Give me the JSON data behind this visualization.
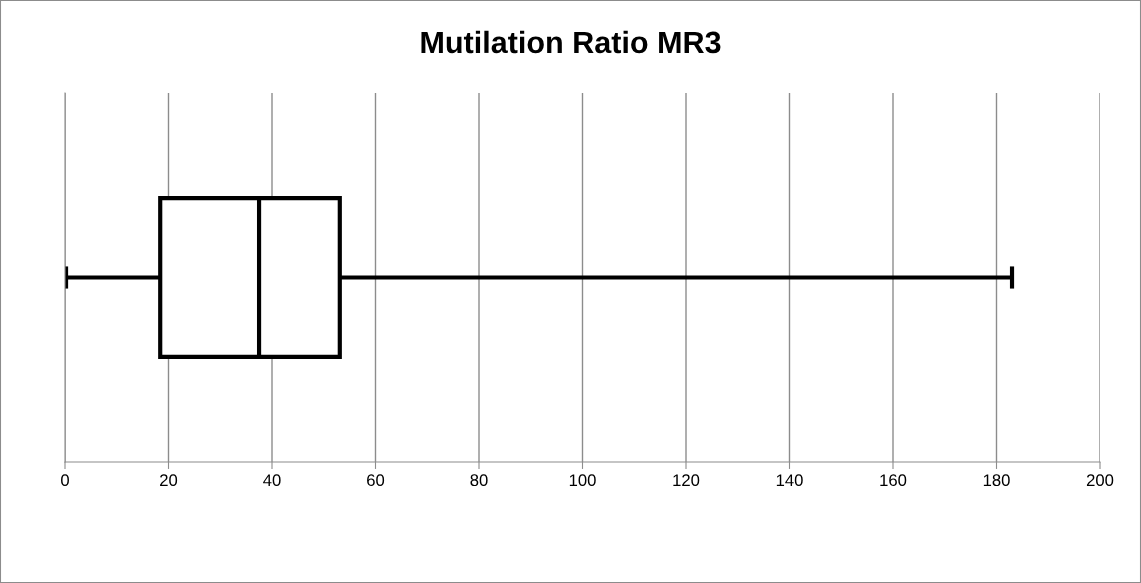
{
  "chart_data": {
    "type": "box",
    "title": "Mutilation Ratio MR3",
    "orientation": "horizontal",
    "categories": [
      null
    ],
    "boxes": [
      {
        "low": 0.2,
        "q1": 18.4,
        "median": 37.5,
        "q3": 53.1,
        "high": 183
      }
    ],
    "color": "#000000",
    "xlim": [
      0,
      200
    ],
    "xticks": [
      0,
      20,
      40,
      60,
      80,
      100,
      120,
      140,
      160,
      180,
      200
    ],
    "grid": "x",
    "tick_labels": "x"
  }
}
